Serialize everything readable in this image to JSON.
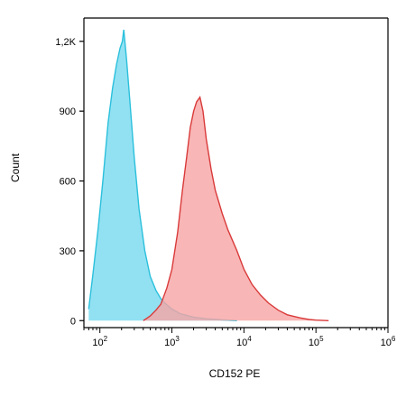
{
  "chart_data": {
    "type": "area",
    "xlabel": "CD152 PE",
    "ylabel": "Count",
    "xscale": "log",
    "xlim": [
      60,
      1000000
    ],
    "ylim": [
      -30,
      1300
    ],
    "yticks": [
      {
        "value": 0,
        "label": "0"
      },
      {
        "value": 300,
        "label": "300"
      },
      {
        "value": 600,
        "label": "600"
      },
      {
        "value": 900,
        "label": "900"
      },
      {
        "value": 1200,
        "label": "1,2K"
      }
    ],
    "xticks": [
      {
        "value": 100,
        "base": "10",
        "exp": "2"
      },
      {
        "value": 1000,
        "base": "10",
        "exp": "3"
      },
      {
        "value": 10000,
        "base": "10",
        "exp": "4"
      },
      {
        "value": 100000,
        "base": "10",
        "exp": "5"
      },
      {
        "value": 1000000,
        "base": "10",
        "exp": "6"
      }
    ],
    "grid": false,
    "series": [
      {
        "color": "#2bc0dc",
        "fill": "#7fdcf0",
        "points": [
          [
            70,
            50
          ],
          [
            80,
            200
          ],
          [
            95,
            400
          ],
          [
            110,
            600
          ],
          [
            130,
            850
          ],
          [
            150,
            1000
          ],
          [
            170,
            1100
          ],
          [
            190,
            1170
          ],
          [
            205,
            1200
          ],
          [
            215,
            1250
          ],
          [
            235,
            1120
          ],
          [
            260,
            950
          ],
          [
            300,
            700
          ],
          [
            350,
            480
          ],
          [
            420,
            300
          ],
          [
            500,
            190
          ],
          [
            600,
            130
          ],
          [
            700,
            95
          ],
          [
            800,
            75
          ],
          [
            1000,
            50
          ],
          [
            1300,
            30
          ],
          [
            2000,
            15
          ],
          [
            3000,
            8
          ],
          [
            5000,
            3
          ],
          [
            8000,
            0
          ]
        ]
      },
      {
        "color": "#d93a3a",
        "fill": "#f7a4a4",
        "points": [
          [
            400,
            0
          ],
          [
            500,
            20
          ],
          [
            600,
            45
          ],
          [
            700,
            70
          ],
          [
            850,
            140
          ],
          [
            1000,
            220
          ],
          [
            1200,
            380
          ],
          [
            1400,
            560
          ],
          [
            1600,
            700
          ],
          [
            1800,
            830
          ],
          [
            2000,
            900
          ],
          [
            2200,
            940
          ],
          [
            2450,
            960
          ],
          [
            2700,
            900
          ],
          [
            3000,
            780
          ],
          [
            3500,
            650
          ],
          [
            4000,
            560
          ],
          [
            5000,
            460
          ],
          [
            6000,
            390
          ],
          [
            8000,
            300
          ],
          [
            10000,
            220
          ],
          [
            13000,
            155
          ],
          [
            17000,
            110
          ],
          [
            22000,
            75
          ],
          [
            30000,
            45
          ],
          [
            40000,
            25
          ],
          [
            60000,
            12
          ],
          [
            80000,
            5
          ],
          [
            100000,
            2
          ],
          [
            150000,
            0
          ]
        ]
      }
    ]
  }
}
